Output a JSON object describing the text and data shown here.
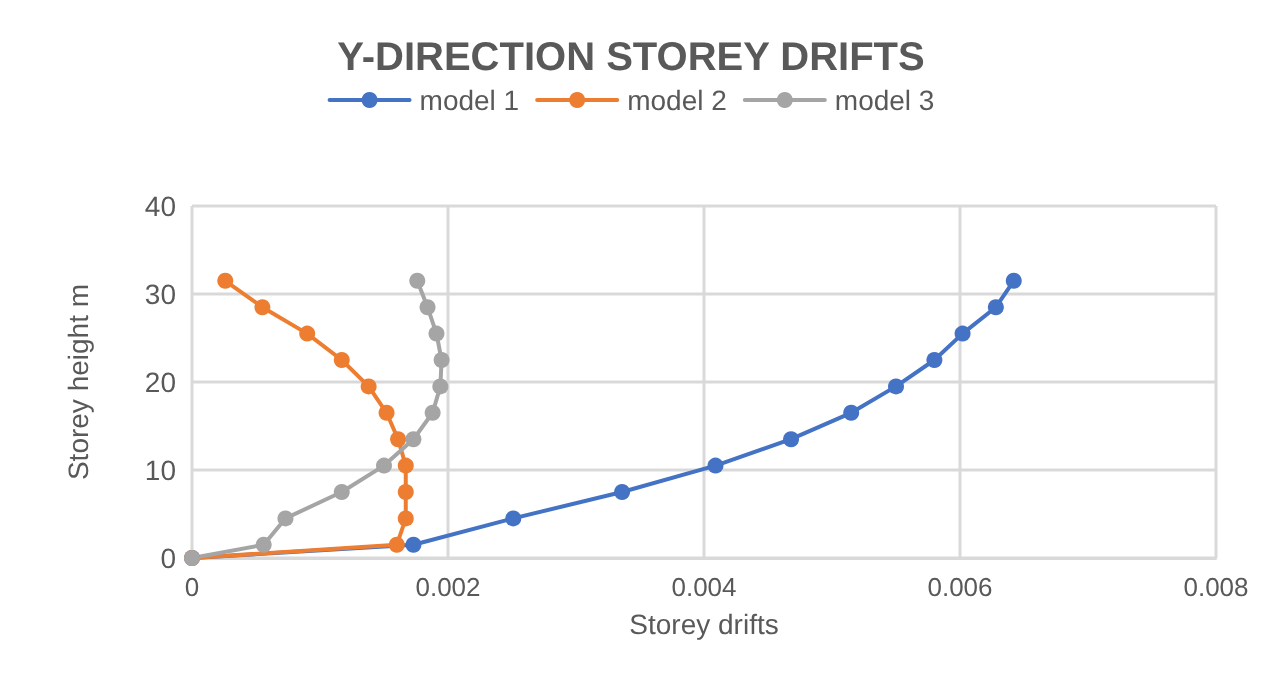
{
  "chart_data": {
    "type": "line",
    "title": "Y-DIRECTION STOREY DRIFTS",
    "xlabel": "Storey drifts",
    "ylabel": "Storey height m",
    "xlim": [
      0,
      0.008
    ],
    "xticks": [
      0,
      0.002,
      0.004,
      0.006,
      0.008
    ],
    "ylim": [
      0,
      40
    ],
    "yticks": [
      0,
      10,
      20,
      30,
      40
    ],
    "grid": true,
    "legend": "top",
    "marker": "circle",
    "line_style": "solid",
    "series": [
      {
        "name": "model 1",
        "color": "#4472c4",
        "x": [
          0,
          0.00173,
          0.00251,
          0.00336,
          0.00409,
          0.00468,
          0.00515,
          0.0055,
          0.0058,
          0.00602,
          0.00628,
          0.00642
        ],
        "values": [
          0,
          1.5,
          4.5,
          7.5,
          10.5,
          13.5,
          16.5,
          19.5,
          22.5,
          25.5,
          28.5,
          31.5
        ]
      },
      {
        "name": "model 2",
        "color": "#ed7d31",
        "x": [
          0,
          0.0016,
          0.00167,
          0.00167,
          0.00167,
          0.00161,
          0.00152,
          0.00138,
          0.00117,
          0.0009,
          0.00055,
          0.00026
        ],
        "values": [
          0,
          1.5,
          4.5,
          7.5,
          10.5,
          13.5,
          16.5,
          19.5,
          22.5,
          25.5,
          28.5,
          31.5
        ]
      },
      {
        "name": "model 3",
        "color": "#a5a5a5",
        "x": [
          0,
          0.00056,
          0.00073,
          0.00117,
          0.0015,
          0.00173,
          0.00188,
          0.00194,
          0.00195,
          0.00191,
          0.00184,
          0.00176
        ],
        "values": [
          0,
          1.5,
          4.5,
          7.5,
          10.5,
          13.5,
          16.5,
          19.5,
          22.5,
          25.5,
          28.5,
          31.5
        ]
      }
    ]
  }
}
